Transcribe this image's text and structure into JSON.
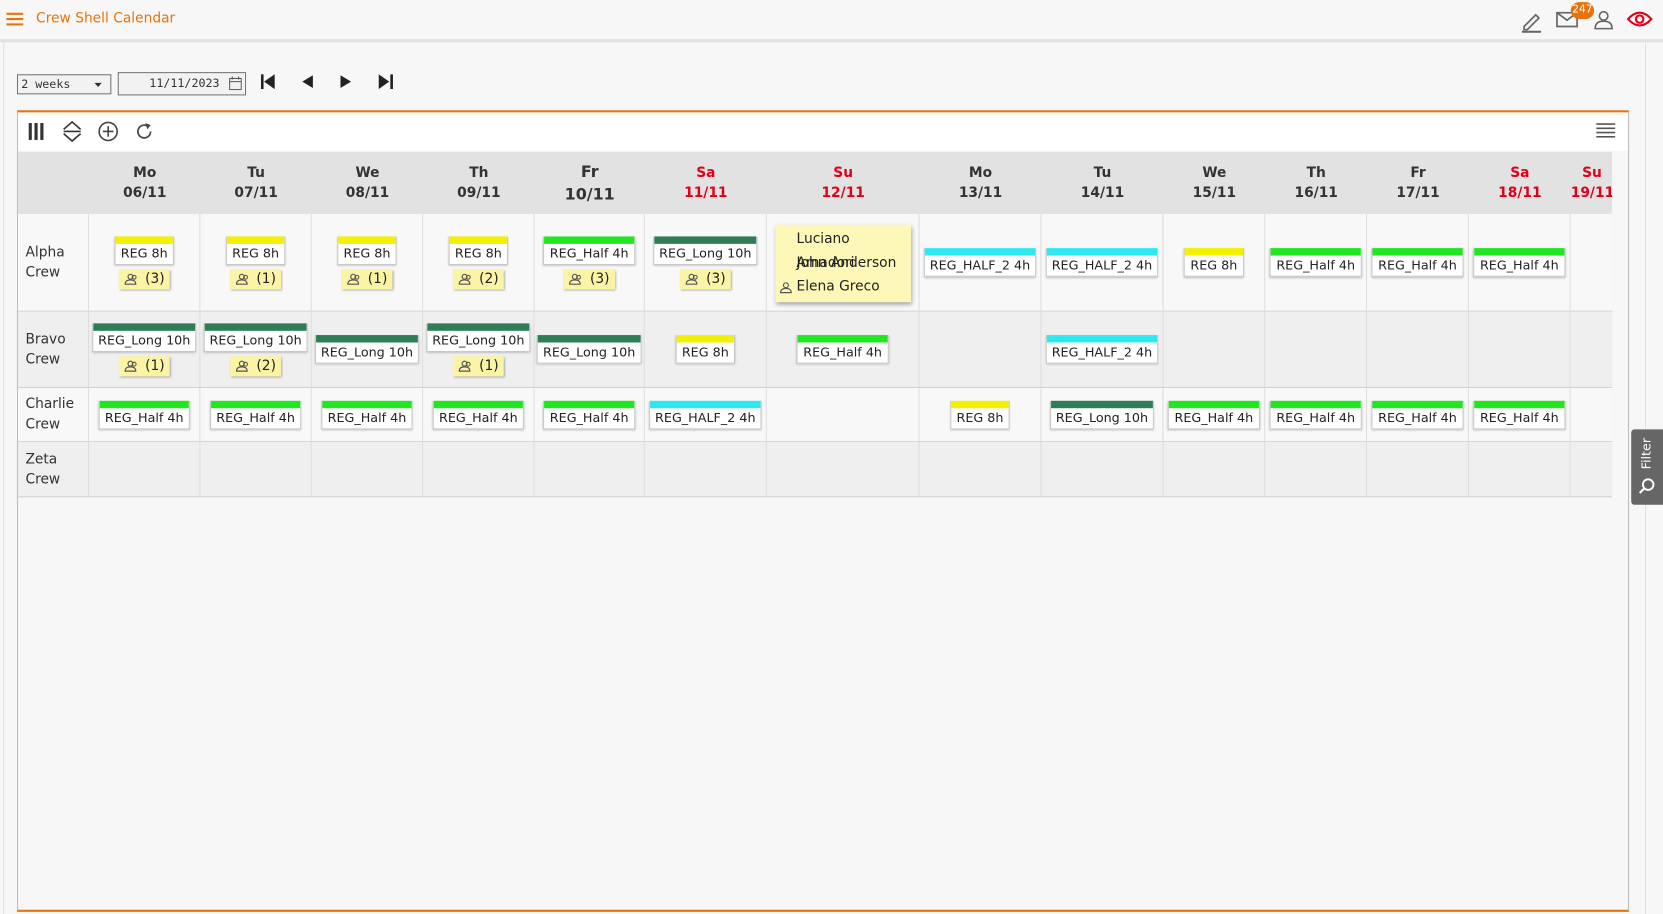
{
  "header": {
    "title": "Crew Shell Calendar",
    "badge": "247"
  },
  "toolbar": {
    "range": "2 weeks",
    "date": "11/11/2023"
  },
  "filter": "Filter",
  "days": [
    {
      "dow": "Mo",
      "date": "06/11"
    },
    {
      "dow": "Tu",
      "date": "07/11"
    },
    {
      "dow": "We",
      "date": "08/11"
    },
    {
      "dow": "Th",
      "date": "09/11"
    },
    {
      "dow": "Fr",
      "date": "10/11",
      "today": true
    },
    {
      "dow": "Sa",
      "date": "11/11",
      "weekend": true
    },
    {
      "dow": "Su",
      "date": "12/11",
      "weekend": true
    },
    {
      "dow": "Mo",
      "date": "13/11"
    },
    {
      "dow": "Tu",
      "date": "14/11"
    },
    {
      "dow": "We",
      "date": "15/11"
    },
    {
      "dow": "Th",
      "date": "16/11"
    },
    {
      "dow": "Fr",
      "date": "17/11"
    },
    {
      "dow": "Sa",
      "date": "18/11",
      "weekend": true
    },
    {
      "dow": "Su",
      "date": "19/11",
      "weekend": true
    }
  ],
  "crews": [
    {
      "name": "Alpha Crew",
      "cells": [
        {
          "label": "REG 8h",
          "color": "#f2f200",
          "count": "(3)"
        },
        {
          "label": "REG 8h",
          "color": "#f2f200",
          "count": "(1)"
        },
        {
          "label": "REG 8h",
          "color": "#f2f200",
          "count": "(1)"
        },
        {
          "label": "REG 8h",
          "color": "#f2f200",
          "count": "(2)"
        },
        {
          "label": "REG_Half 4h",
          "color": "#22e622",
          "count": "(3)"
        },
        {
          "label": "REG_Long 10h",
          "color": "#2e7d57",
          "count": "(3)"
        },
        {
          "names": [
            "Luciano Amadori",
            "John Anderson",
            "Elena Greco"
          ]
        },
        {
          "label": "REG_HALF_2 4h",
          "color": "#2ee8f0"
        },
        {
          "label": "REG_HALF_2 4h",
          "color": "#2ee8f0"
        },
        {
          "label": "REG 8h",
          "color": "#f2f200"
        },
        {
          "label": "REG_Half 4h",
          "color": "#22e622"
        },
        {
          "label": "REG_Half 4h",
          "color": "#22e622"
        },
        {
          "label": "REG_Half 4h",
          "color": "#22e622"
        },
        null
      ]
    },
    {
      "name": "Bravo Crew",
      "cells": [
        {
          "label": "REG_Long 10h",
          "color": "#2e7d57",
          "count": "(1)"
        },
        {
          "label": "REG_Long 10h",
          "color": "#2e7d57",
          "count": "(2)"
        },
        {
          "label": "REG_Long 10h",
          "color": "#2e7d57"
        },
        {
          "label": "REG_Long 10h",
          "color": "#2e7d57",
          "count": "(1)"
        },
        {
          "label": "REG_Long 10h",
          "color": "#2e7d57"
        },
        {
          "label": "REG 8h",
          "color": "#f2f200"
        },
        {
          "label": "REG_Half 4h",
          "color": "#22e622"
        },
        null,
        {
          "label": "REG_HALF_2 4h",
          "color": "#2ee8f0"
        },
        null,
        null,
        null,
        null,
        null
      ]
    },
    {
      "name": "Charlie Crew",
      "cells": [
        {
          "label": "REG_Half 4h",
          "color": "#22e622"
        },
        {
          "label": "REG_Half 4h",
          "color": "#22e622"
        },
        {
          "label": "REG_Half 4h",
          "color": "#22e622"
        },
        {
          "label": "REG_Half 4h",
          "color": "#22e622"
        },
        {
          "label": "REG_Half 4h",
          "color": "#22e622"
        },
        {
          "label": "REG_HALF_2 4h",
          "color": "#2ee8f0"
        },
        null,
        {
          "label": "REG 8h",
          "color": "#f2f200"
        },
        {
          "label": "REG_Long 10h",
          "color": "#2e7d57"
        },
        {
          "label": "REG_Half 4h",
          "color": "#22e622"
        },
        {
          "label": "REG_Half 4h",
          "color": "#22e622"
        },
        {
          "label": "REG_Half 4h",
          "color": "#22e622"
        },
        {
          "label": "REG_Half 4h",
          "color": "#22e622"
        },
        null
      ]
    },
    {
      "name": "Zeta Crew",
      "cells": [
        null,
        null,
        null,
        null,
        null,
        null,
        null,
        null,
        null,
        null,
        null,
        null,
        null,
        null
      ]
    }
  ]
}
